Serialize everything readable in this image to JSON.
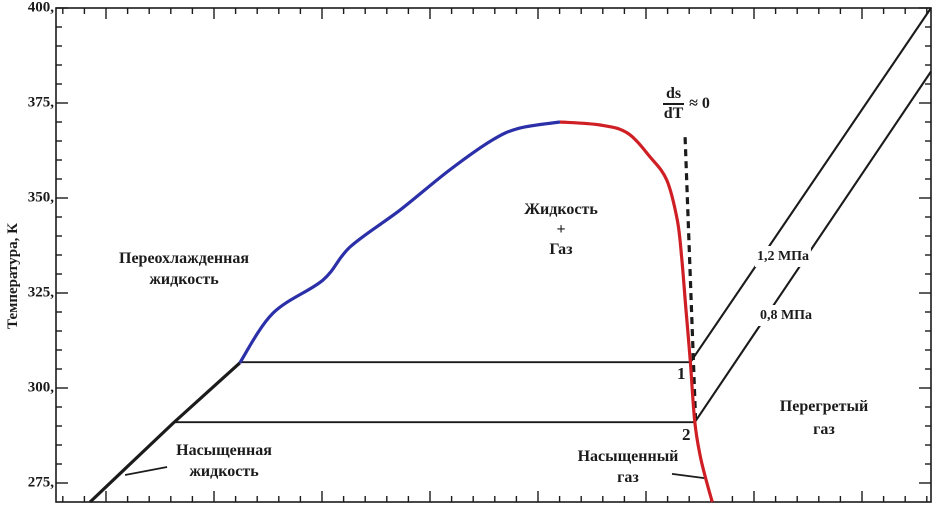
{
  "figure": {
    "ylabel": "Температура, К",
    "y_tick_labels": [
      {
        "t": 400,
        "text": "400,"
      },
      {
        "t": 375,
        "text": "375,"
      },
      {
        "t": 350,
        "text": "350,"
      },
      {
        "t": 325,
        "text": "325,"
      },
      {
        "t": 300,
        "text": "300,"
      },
      {
        "t": 275,
        "text": "275,"
      }
    ]
  },
  "labels": {
    "subcooled": {
      "line1": "Переохлажденная",
      "line2": "жидкость"
    },
    "two_phase": {
      "line1": "Жидкость",
      "line2": "+",
      "line3": "Газ"
    },
    "superheated": {
      "line1": "Перегретый",
      "line2": "газ"
    },
    "saturated_liquid": {
      "line1": "Насыщенная",
      "line2": "жидкость"
    },
    "saturated_gas": {
      "line1": "Насыщенный",
      "line2": "газ"
    },
    "isobar_high": "1,2 МПа",
    "isobar_low": "0,8 МПа",
    "point1": "1",
    "point2": "2",
    "derivative": {
      "numerator": "ds",
      "denominator": "dT",
      "approx": "≈ 0"
    }
  },
  "colors": {
    "black": "#1b1b1b",
    "saturated_liquid_blue": "#2b2fa8",
    "saturated_vapor_red": "#cf1f24",
    "frame": "#1b1b1b"
  },
  "chart_data": {
    "type": "line",
    "title": "",
    "xlabel": "",
    "ylabel": "Температура, К",
    "xlim": [
      0,
      100
    ],
    "ylim": [
      270,
      400
    ],
    "grid": false,
    "legend": false,
    "frame": "full box with inward ticks on all four sides; only left axis labeled",
    "dome_peak": {
      "s": 57.6,
      "T_K": 370
    },
    "points": [
      {
        "label": "1",
        "s": 72.5,
        "T_K": 307,
        "isobar": "1,2 МПа"
      },
      {
        "label": "2",
        "s": 73.0,
        "T_K": 291,
        "isobar": "0,8 МПа"
      }
    ],
    "series": [
      {
        "name": "tie-line-isobar-1.2MPa-inside-dome",
        "color": "#1b1b1b",
        "width": 1.8,
        "smooth": false,
        "points": [
          [
            21.0,
            306.8
          ],
          [
            72.5,
            306.8
          ]
        ]
      },
      {
        "name": "tie-line-isobar-0.8MPa-inside-dome",
        "color": "#1b1b1b",
        "width": 1.8,
        "smooth": false,
        "points": [
          [
            13.4,
            291.0
          ],
          [
            73.0,
            291.0
          ]
        ]
      },
      {
        "name": "isobar-1.2MPa-superheated",
        "color": "#1b1b1b",
        "width": 2.1,
        "smooth": false,
        "points": [
          [
            72.5,
            306.8
          ],
          [
            100,
            400
          ]
        ]
      },
      {
        "name": "isobar-0.8MPa-superheated",
        "color": "#1b1b1b",
        "width": 2.1,
        "smooth": false,
        "points": [
          [
            73.0,
            291.0
          ],
          [
            100,
            383.3
          ]
        ]
      },
      {
        "name": "ds-dT-near-zero-dashed-line",
        "color": "#1b1b1b",
        "width": 3.2,
        "smooth": false,
        "dash": "7 5",
        "points": [
          [
            71.9,
            366.0
          ],
          [
            73.1,
            291.5
          ]
        ]
      },
      {
        "name": "callout-pointer-saturated-liquid",
        "color": "#1b1b1b",
        "width": 1.8,
        "smooth": false,
        "points": [
          [
            12.7,
            279.2
          ],
          [
            7.9,
            277.1
          ]
        ]
      },
      {
        "name": "callout-pointer-saturated-gas",
        "color": "#1b1b1b",
        "width": 1.8,
        "smooth": false,
        "points": [
          [
            70.4,
            277.4
          ],
          [
            74.1,
            276.3
          ]
        ]
      },
      {
        "name": "saturated-liquid-line-black-segment",
        "color": "#1b1b1b",
        "width": 3.2,
        "smooth": false,
        "points": [
          [
            3.9,
            270.0
          ],
          [
            13.4,
            290.8
          ],
          [
            21.0,
            306.6
          ]
        ]
      },
      {
        "name": "saturated-liquid-curve-blue",
        "color": "#2b2fa8",
        "width": 3.2,
        "smooth": true,
        "points": [
          [
            21.0,
            306.6
          ],
          [
            24.8,
            319.7
          ],
          [
            30.5,
            328.4
          ],
          [
            33.6,
            337.1
          ],
          [
            39.3,
            346.8
          ],
          [
            45.0,
            357.4
          ],
          [
            49.9,
            365.3
          ],
          [
            53.0,
            368.4
          ],
          [
            57.6,
            370.0
          ]
        ]
      },
      {
        "name": "saturated-vapor-curve-red",
        "color": "#cf1f24",
        "width": 3.2,
        "smooth": true,
        "points": [
          [
            57.6,
            370.0
          ],
          [
            62.2,
            369.2
          ],
          [
            65.3,
            367.1
          ],
          [
            67.9,
            360.8
          ],
          [
            69.8,
            354.7
          ],
          [
            71.0,
            344.2
          ],
          [
            71.5,
            334.5
          ],
          [
            72.0,
            320.5
          ],
          [
            72.5,
            306.8
          ],
          [
            73.0,
            291.1
          ],
          [
            73.6,
            282.4
          ],
          [
            74.3,
            275.8
          ],
          [
            75.0,
            270.0
          ]
        ]
      }
    ]
  }
}
